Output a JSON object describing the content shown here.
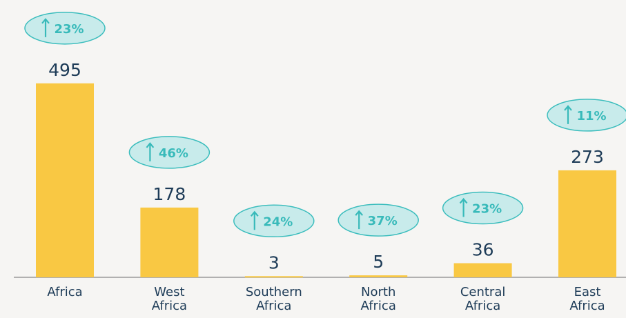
{
  "chart_data": {
    "type": "bar",
    "categories": [
      "Africa",
      "West Africa",
      "Southern Africa",
      "North Africa",
      "Central Africa",
      "East Africa"
    ],
    "values": [
      495,
      178,
      3,
      5,
      36,
      273
    ],
    "annotations": [
      "23%",
      "46%",
      "24%",
      "37%",
      "23%",
      "11%"
    ],
    "color": "#f9c843",
    "ylim": [
      0,
      500
    ]
  }
}
